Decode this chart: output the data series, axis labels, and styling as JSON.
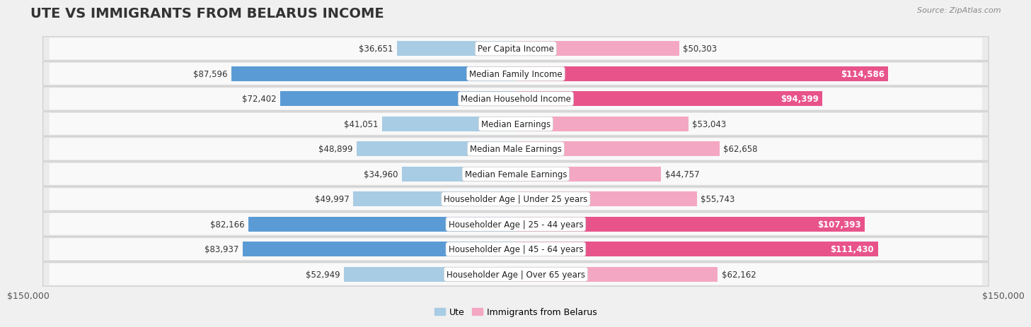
{
  "title": "Ute vs Immigrants from Belarus Income",
  "source": "Source: ZipAtlas.com",
  "categories": [
    "Per Capita Income",
    "Median Family Income",
    "Median Household Income",
    "Median Earnings",
    "Median Male Earnings",
    "Median Female Earnings",
    "Householder Age | Under 25 years",
    "Householder Age | 25 - 44 years",
    "Householder Age | 45 - 64 years",
    "Householder Age | Over 65 years"
  ],
  "ute_values": [
    36651,
    87596,
    72402,
    41051,
    48899,
    34960,
    49997,
    82166,
    83937,
    52949
  ],
  "belarus_values": [
    50303,
    114586,
    94399,
    53043,
    62658,
    44757,
    55743,
    107393,
    111430,
    62162
  ],
  "ute_color_light": "#a8cce4",
  "ute_color_dark": "#5b9bd5",
  "belarus_color_light": "#f4a7c3",
  "belarus_color_dark": "#e8538a",
  "ute_threshold": 60000,
  "belarus_threshold": 80000,
  "max_value": 150000,
  "bg_color": "#f0f0f0",
  "row_bg_color": "#f7f7f7",
  "row_inner_color": "#ffffff",
  "legend_ute": "Ute",
  "legend_belarus": "Immigrants from Belarus",
  "left_axis_label": "$150,000",
  "right_axis_label": "$150,000",
  "title_fontsize": 14,
  "label_fontsize": 8.5,
  "value_fontsize": 8.5,
  "axis_fontsize": 9
}
